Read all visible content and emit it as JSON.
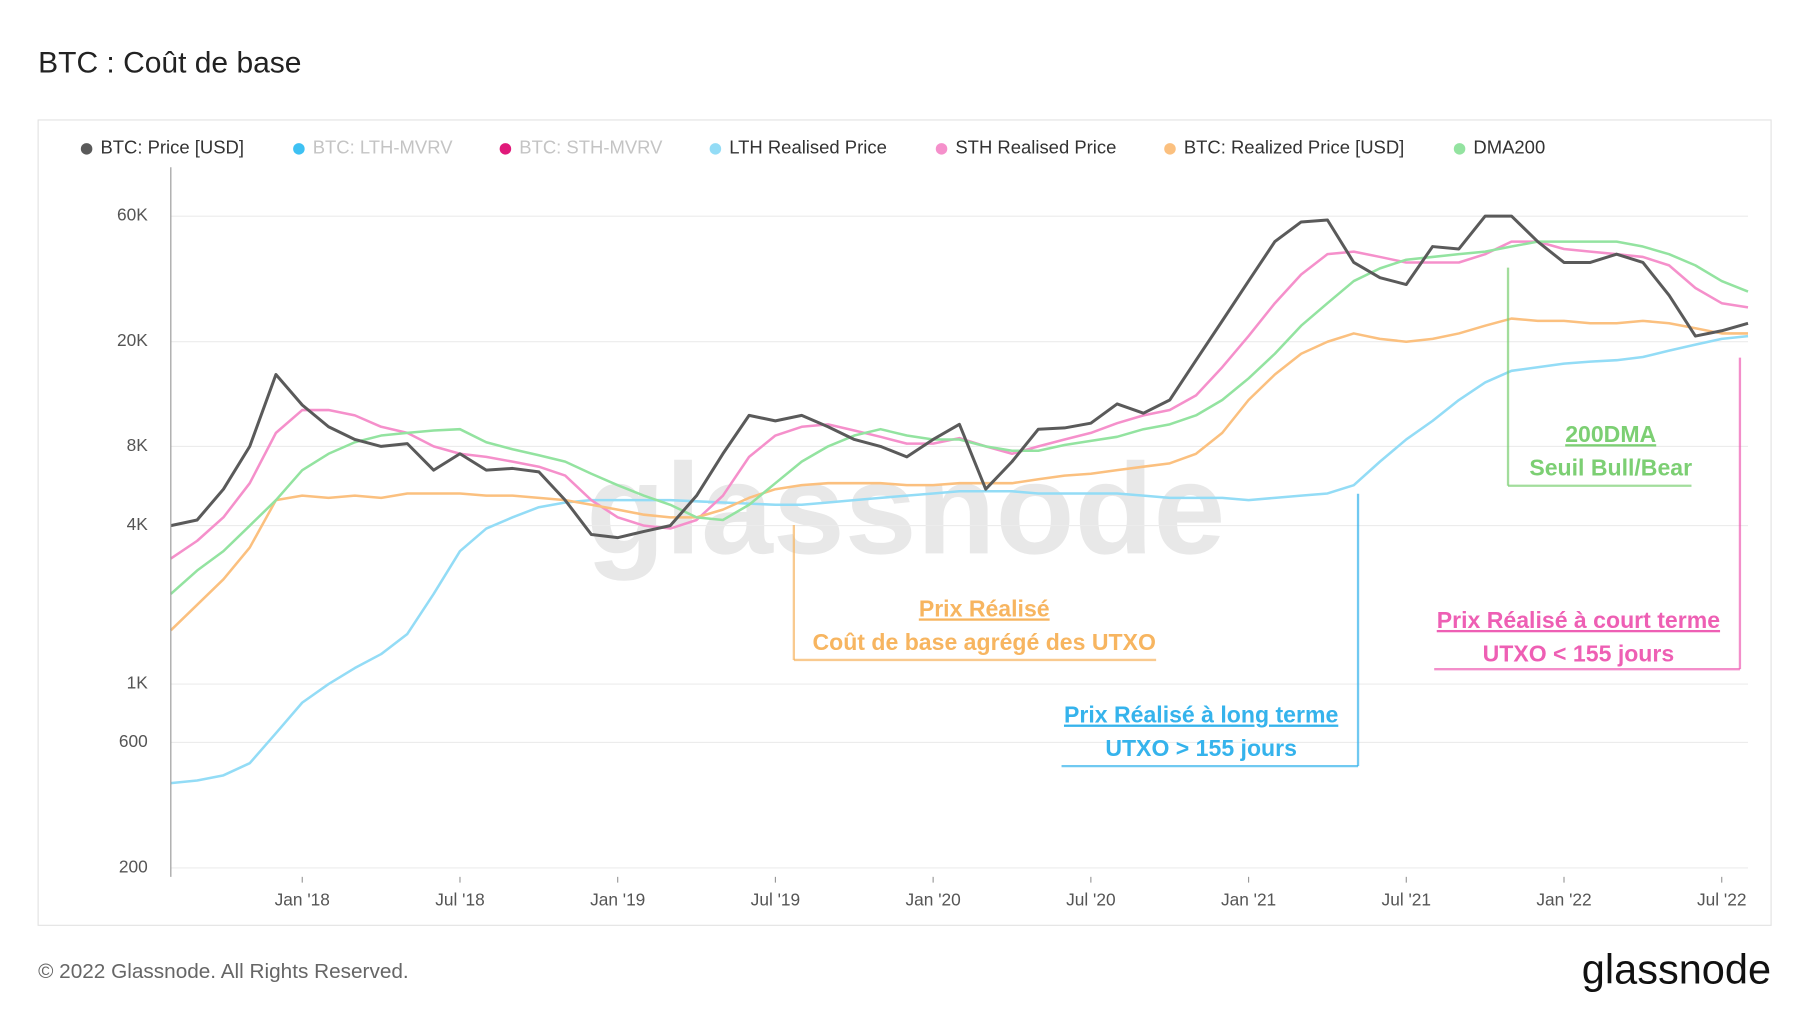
{
  "chart_data": {
    "type": "line",
    "title": "BTC : Coût de base",
    "footer": "© 2022 Glassnode. All Rights Reserved.",
    "brand": "glassnode",
    "watermark": "glassnode",
    "log_scale": true,
    "grid": true,
    "x": [
      "2017-08",
      "2017-09",
      "2017-10",
      "2017-11",
      "2017-12",
      "2018-01",
      "2018-02",
      "2018-03",
      "2018-04",
      "2018-05",
      "2018-06",
      "2018-07",
      "2018-08",
      "2018-09",
      "2018-10",
      "2018-11",
      "2018-12",
      "2019-01",
      "2019-02",
      "2019-03",
      "2019-04",
      "2019-05",
      "2019-06",
      "2019-07",
      "2019-08",
      "2019-09",
      "2019-10",
      "2019-11",
      "2019-12",
      "2020-01",
      "2020-02",
      "2020-03",
      "2020-04",
      "2020-05",
      "2020-06",
      "2020-07",
      "2020-08",
      "2020-09",
      "2020-10",
      "2020-11",
      "2020-12",
      "2021-01",
      "2021-02",
      "2021-03",
      "2021-04",
      "2021-05",
      "2021-06",
      "2021-07",
      "2021-08",
      "2021-09",
      "2021-10",
      "2021-11",
      "2021-12",
      "2022-01",
      "2022-02",
      "2022-03",
      "2022-04",
      "2022-05",
      "2022-06",
      "2022-07",
      "2022-08"
    ],
    "xlim": [
      "2017-08",
      "2022-08"
    ],
    "xticks": [
      {
        "value": "2018-01",
        "label": "Jan '18"
      },
      {
        "value": "2018-07",
        "label": "Jul '18"
      },
      {
        "value": "2019-01",
        "label": "Jan '19"
      },
      {
        "value": "2019-07",
        "label": "Jul '19"
      },
      {
        "value": "2020-01",
        "label": "Jan '20"
      },
      {
        "value": "2020-07",
        "label": "Jul '20"
      },
      {
        "value": "2021-01",
        "label": "Jan '21"
      },
      {
        "value": "2021-07",
        "label": "Jul '21"
      },
      {
        "value": "2022-01",
        "label": "Jan '22"
      },
      {
        "value": "2022-07",
        "label": "Jul '22"
      }
    ],
    "ylim": [
      185,
      92000
    ],
    "yticks": [
      200,
      600,
      {
        "value": 1000,
        "label": "1K"
      },
      {
        "value": 4000,
        "label": "4K"
      },
      {
        "value": 8000,
        "label": "8K"
      },
      {
        "value": 20000,
        "label": "20K"
      },
      {
        "value": 60000,
        "label": "60K"
      }
    ],
    "series": [
      {
        "name": "BTC: Price [USD]",
        "color": "#5a5a5a",
        "values": [
          4000,
          4200,
          5500,
          8000,
          15000,
          11500,
          9500,
          8500,
          8000,
          8200,
          6500,
          7500,
          6500,
          6600,
          6400,
          5000,
          3700,
          3600,
          3800,
          4000,
          5200,
          7500,
          10500,
          10000,
          10500,
          9500,
          8500,
          8000,
          7300,
          8500,
          9700,
          5500,
          7000,
          9300,
          9400,
          9800,
          11600,
          10700,
          12000,
          17000,
          24000,
          34000,
          48000,
          57000,
          58000,
          40000,
          35000,
          33000,
          46000,
          45000,
          60000,
          60000,
          48000,
          40000,
          40000,
          43000,
          40000,
          30000,
          21000,
          22000,
          23500
        ]
      },
      {
        "name": "BTC: LTH-MVRV",
        "color": "#3ec1f3",
        "hidden": true
      },
      {
        "name": "BTC: STH-MVRV",
        "color": "#e0197a",
        "hidden": true
      },
      {
        "name": "LTH Realised Price",
        "color": "#93dcf6",
        "values": [
          420,
          430,
          450,
          500,
          650,
          850,
          1000,
          1150,
          1300,
          1550,
          2200,
          3200,
          3900,
          4300,
          4700,
          4900,
          5000,
          5000,
          5000,
          5000,
          4950,
          4900,
          4850,
          4800,
          4800,
          4900,
          5000,
          5100,
          5200,
          5300,
          5400,
          5400,
          5400,
          5300,
          5300,
          5300,
          5300,
          5200,
          5100,
          5100,
          5100,
          5000,
          5100,
          5200,
          5300,
          5700,
          7000,
          8500,
          10000,
          12000,
          14000,
          15500,
          16000,
          16500,
          16800,
          17000,
          17500,
          18500,
          19500,
          20500,
          21000
        ]
      },
      {
        "name": "STH Realised Price",
        "color": "#f590cb",
        "values": [
          3000,
          3500,
          4300,
          5800,
          9000,
          11000,
          11000,
          10500,
          9500,
          9000,
          8000,
          7500,
          7300,
          7000,
          6700,
          6200,
          5000,
          4300,
          4000,
          3900,
          4200,
          5200,
          7300,
          8800,
          9500,
          9700,
          9200,
          8700,
          8200,
          8200,
          8600,
          8000,
          7500,
          8000,
          8500,
          9000,
          9800,
          10500,
          11000,
          12500,
          16000,
          21000,
          28000,
          36000,
          43000,
          44000,
          42000,
          40000,
          40000,
          40000,
          43000,
          48000,
          48000,
          45000,
          44000,
          43000,
          42000,
          39000,
          32000,
          28000,
          27000
        ]
      },
      {
        "name": "BTC: Realized Price [USD]",
        "color": "#fbc07f",
        "values": [
          1600,
          2000,
          2500,
          3300,
          5000,
          5200,
          5100,
          5200,
          5100,
          5300,
          5300,
          5300,
          5200,
          5200,
          5100,
          5000,
          4800,
          4600,
          4400,
          4300,
          4300,
          4600,
          5100,
          5500,
          5700,
          5800,
          5800,
          5800,
          5700,
          5700,
          5800,
          5800,
          5800,
          6000,
          6200,
          6300,
          6500,
          6700,
          6900,
          7500,
          9000,
          12000,
          15000,
          18000,
          20000,
          21500,
          20500,
          20000,
          20500,
          21500,
          23000,
          24500,
          24000,
          24000,
          23500,
          23500,
          24000,
          23500,
          22500,
          21500,
          21500
        ]
      },
      {
        "name": "DMA200",
        "color": "#93e3a0",
        "values": [
          2200,
          2700,
          3200,
          4000,
          5000,
          6500,
          7500,
          8300,
          8800,
          9000,
          9200,
          9300,
          8300,
          7800,
          7400,
          7000,
          6300,
          5700,
          5200,
          4800,
          4300,
          4200,
          4800,
          5800,
          7000,
          8000,
          8800,
          9300,
          8800,
          8500,
          8500,
          8000,
          7700,
          7700,
          8100,
          8400,
          8700,
          9300,
          9700,
          10500,
          12000,
          14500,
          18000,
          23000,
          28000,
          34000,
          38000,
          41000,
          42000,
          43000,
          44000,
          46000,
          48000,
          48000,
          48000,
          48000,
          46000,
          43000,
          39000,
          34000,
          31000
        ]
      }
    ],
    "annotations": [
      {
        "title": "Prix Réalisé",
        "text": "Coût de base agrégé des UTXO",
        "color": "#f7b560"
      },
      {
        "title": "Prix Réalisé à long terme",
        "text": "UTXO > 155 jours",
        "color": "#35b3ec"
      },
      {
        "title": "Prix Réalisé à court terme",
        "text": "UTXO < 155 jours",
        "color": "#ee5fb4"
      },
      {
        "title": "200DMA",
        "text": "Seuil Bull/Bear",
        "color": "#7ccf73"
      }
    ]
  }
}
